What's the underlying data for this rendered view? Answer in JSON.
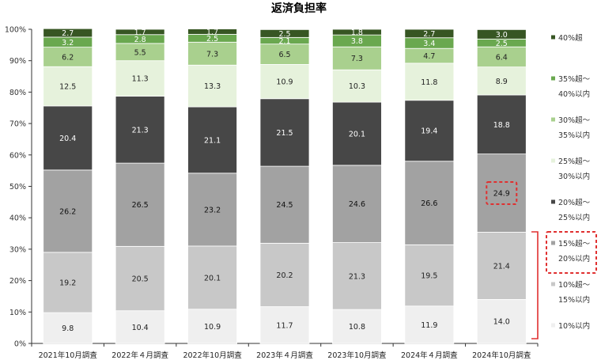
{
  "chart_data": {
    "type": "bar",
    "stacked": true,
    "title": "返済負担率",
    "categories": [
      "2021年10月調査",
      "2022年４月調査",
      "2022年10月調査",
      "2023年４月調査",
      "2023年10月調査",
      "2024年４月調査",
      "2024年10月調査"
    ],
    "y_ticks": [
      "0%",
      "10%",
      "20%",
      "30%",
      "40%",
      "50%",
      "60%",
      "70%",
      "80%",
      "90%",
      "100%"
    ],
    "ylim": [
      0,
      100
    ],
    "grid": false,
    "legend_position": "right",
    "series": [
      {
        "name_lines": [
          "10%以内"
        ],
        "color": "#efefef",
        "label_color": "#222222",
        "values": [
          9.8,
          10.4,
          10.9,
          11.7,
          10.8,
          11.9,
          14.0
        ]
      },
      {
        "name_lines": [
          "10%超～",
          "15%以内"
        ],
        "color": "#c8c8c8",
        "label_color": "#222222",
        "values": [
          19.2,
          20.5,
          20.1,
          20.2,
          21.3,
          19.5,
          21.4
        ]
      },
      {
        "name_lines": [
          "15%超～",
          "20%以内"
        ],
        "color": "#a2a2a2",
        "label_color": "#111111",
        "values": [
          26.2,
          26.5,
          23.2,
          24.5,
          24.6,
          26.6,
          24.9
        ]
      },
      {
        "name_lines": [
          "20%超～",
          "25%以内"
        ],
        "color": "#474747",
        "label_color": "#ffffff",
        "values": [
          20.4,
          21.3,
          21.1,
          21.5,
          20.1,
          19.4,
          18.8
        ]
      },
      {
        "name_lines": [
          "25%超～",
          "30%以内"
        ],
        "color": "#e6f2dc",
        "label_color": "#222222",
        "values": [
          12.5,
          11.3,
          13.3,
          10.9,
          10.3,
          11.8,
          8.9
        ]
      },
      {
        "name_lines": [
          "30%超～",
          "35%以内"
        ],
        "color": "#a9d08e",
        "label_color": "#222222",
        "values": [
          6.2,
          5.5,
          7.3,
          6.5,
          7.3,
          4.7,
          6.4
        ]
      },
      {
        "name_lines": [
          "35%超～",
          "40%以内"
        ],
        "color": "#6aa84f",
        "label_color": "#ffffff",
        "values": [
          3.2,
          2.8,
          2.5,
          2.1,
          3.8,
          3.4,
          2.5
        ]
      },
      {
        "name_lines": [
          "40%超"
        ],
        "color": "#375623",
        "label_color": "#ffffff",
        "values": [
          2.7,
          1.7,
          1.7,
          2.5,
          1.8,
          2.7,
          3.0
        ]
      }
    ],
    "highlight": {
      "series_index": 2,
      "category_index": 6,
      "style": "red-dashed-box",
      "color": "#e03030"
    }
  }
}
